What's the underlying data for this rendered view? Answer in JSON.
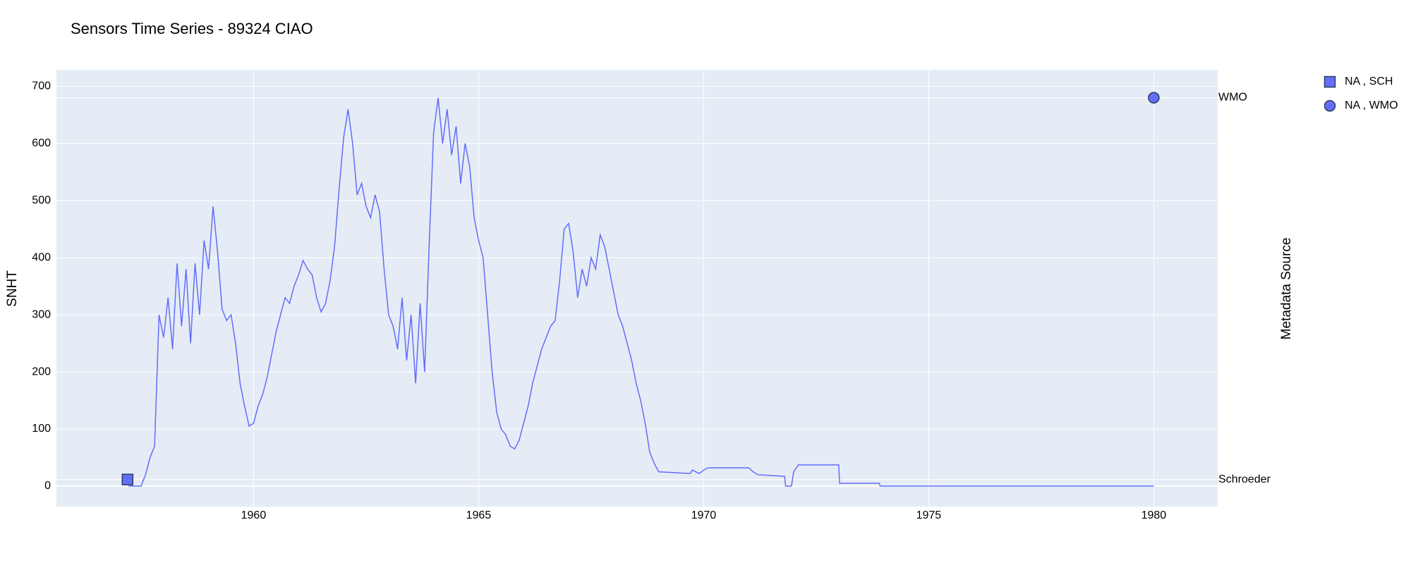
{
  "chart_data": {
    "type": "line",
    "title": "Sensors Time Series - 89324 CIAO",
    "y_label": "SNHT",
    "y2_label": "Metadata Source",
    "xlim": [
      1955.62,
      1981.42
    ],
    "xticks": [
      1960,
      1965,
      1970,
      1975,
      1980
    ],
    "ylim": [
      -36,
      729
    ],
    "yticks": [
      0,
      100,
      200,
      300,
      400,
      500,
      600,
      700
    ],
    "y2lim": [
      -0.071,
      1.073
    ],
    "y2ticks": [
      {
        "value": 0,
        "label": "Schroeder"
      },
      {
        "value": 1,
        "label": "WMO"
      }
    ],
    "grid": true,
    "legend": "top-right",
    "series": [
      {
        "color": "#636efa",
        "mode": "line",
        "x": [
          1957.22,
          1957.5,
          1957.6,
          1957.7,
          1957.8,
          1957.9,
          1958.0,
          1958.1,
          1958.2,
          1958.3,
          1958.4,
          1958.5,
          1958.6,
          1958.7,
          1958.8,
          1958.9,
          1959.0,
          1959.1,
          1959.2,
          1959.3,
          1959.4,
          1959.5,
          1959.6,
          1959.7,
          1959.8,
          1959.9,
          1960.0,
          1960.1,
          1960.2,
          1960.3,
          1960.4,
          1960.5,
          1960.6,
          1960.7,
          1960.8,
          1960.9,
          1961.0,
          1961.1,
          1961.2,
          1961.3,
          1961.4,
          1961.5,
          1961.6,
          1961.7,
          1961.8,
          1961.9,
          1962.0,
          1962.1,
          1962.2,
          1962.3,
          1962.4,
          1962.5,
          1962.6,
          1962.7,
          1962.8,
          1962.9,
          1963.0,
          1963.1,
          1963.2,
          1963.3,
          1963.4,
          1963.5,
          1963.6,
          1963.7,
          1963.8,
          1963.9,
          1964.0,
          1964.1,
          1964.2,
          1964.3,
          1964.4,
          1964.5,
          1964.6,
          1964.7,
          1964.8,
          1964.9,
          1965.0,
          1965.1,
          1965.2,
          1965.3,
          1965.4,
          1965.5,
          1965.6,
          1965.7,
          1965.8,
          1965.9,
          1966.0,
          1966.1,
          1966.2,
          1966.3,
          1966.4,
          1966.5,
          1966.6,
          1966.7,
          1966.8,
          1966.9,
          1967.0,
          1967.1,
          1967.2,
          1967.3,
          1967.4,
          1967.5,
          1967.6,
          1967.7,
          1967.8,
          1967.9,
          1968.0,
          1968.1,
          1968.2,
          1968.3,
          1968.4,
          1968.5,
          1968.6,
          1968.7,
          1968.8,
          1968.9,
          1969.0,
          1969.7,
          1969.75,
          1969.9,
          1970.0,
          1970.1,
          1971.0,
          1971.1,
          1971.2,
          1971.8,
          1971.82,
          1971.95,
          1972.0,
          1972.1,
          1973.0,
          1973.02,
          1973.9,
          1973.92,
          1980.0
        ],
        "values": [
          0,
          0,
          20,
          50,
          70,
          300,
          260,
          330,
          240,
          390,
          280,
          380,
          250,
          390,
          300,
          430,
          380,
          490,
          410,
          310,
          290,
          300,
          250,
          180,
          140,
          105,
          110,
          140,
          160,
          190,
          230,
          270,
          300,
          330,
          320,
          350,
          370,
          395,
          380,
          370,
          330,
          305,
          320,
          360,
          420,
          520,
          610,
          660,
          600,
          510,
          530,
          490,
          470,
          510,
          480,
          380,
          300,
          280,
          240,
          330,
          220,
          300,
          180,
          320,
          200,
          420,
          620,
          680,
          600,
          660,
          580,
          630,
          530,
          600,
          560,
          470,
          430,
          400,
          300,
          200,
          130,
          100,
          90,
          70,
          65,
          80,
          110,
          140,
          180,
          210,
          240,
          260,
          280,
          290,
          360,
          450,
          460,
          410,
          330,
          380,
          350,
          400,
          380,
          440,
          420,
          380,
          340,
          300,
          280,
          250,
          220,
          180,
          150,
          110,
          60,
          40,
          25,
          22,
          28,
          22,
          28,
          32,
          32,
          25,
          20,
          17,
          0,
          0,
          25,
          37,
          37,
          5,
          5,
          0,
          0
        ]
      },
      {
        "name": "NA , SCH",
        "color": "#636efa",
        "mode": "markers",
        "symbol": "square",
        "axis": "y2",
        "x": [
          1957.2
        ],
        "values": [
          0
        ]
      },
      {
        "name": "NA , WMO",
        "color": "#636efa",
        "mode": "markers",
        "symbol": "circle",
        "axis": "y2",
        "x": [
          1980.0
        ],
        "values": [
          1
        ]
      }
    ]
  }
}
